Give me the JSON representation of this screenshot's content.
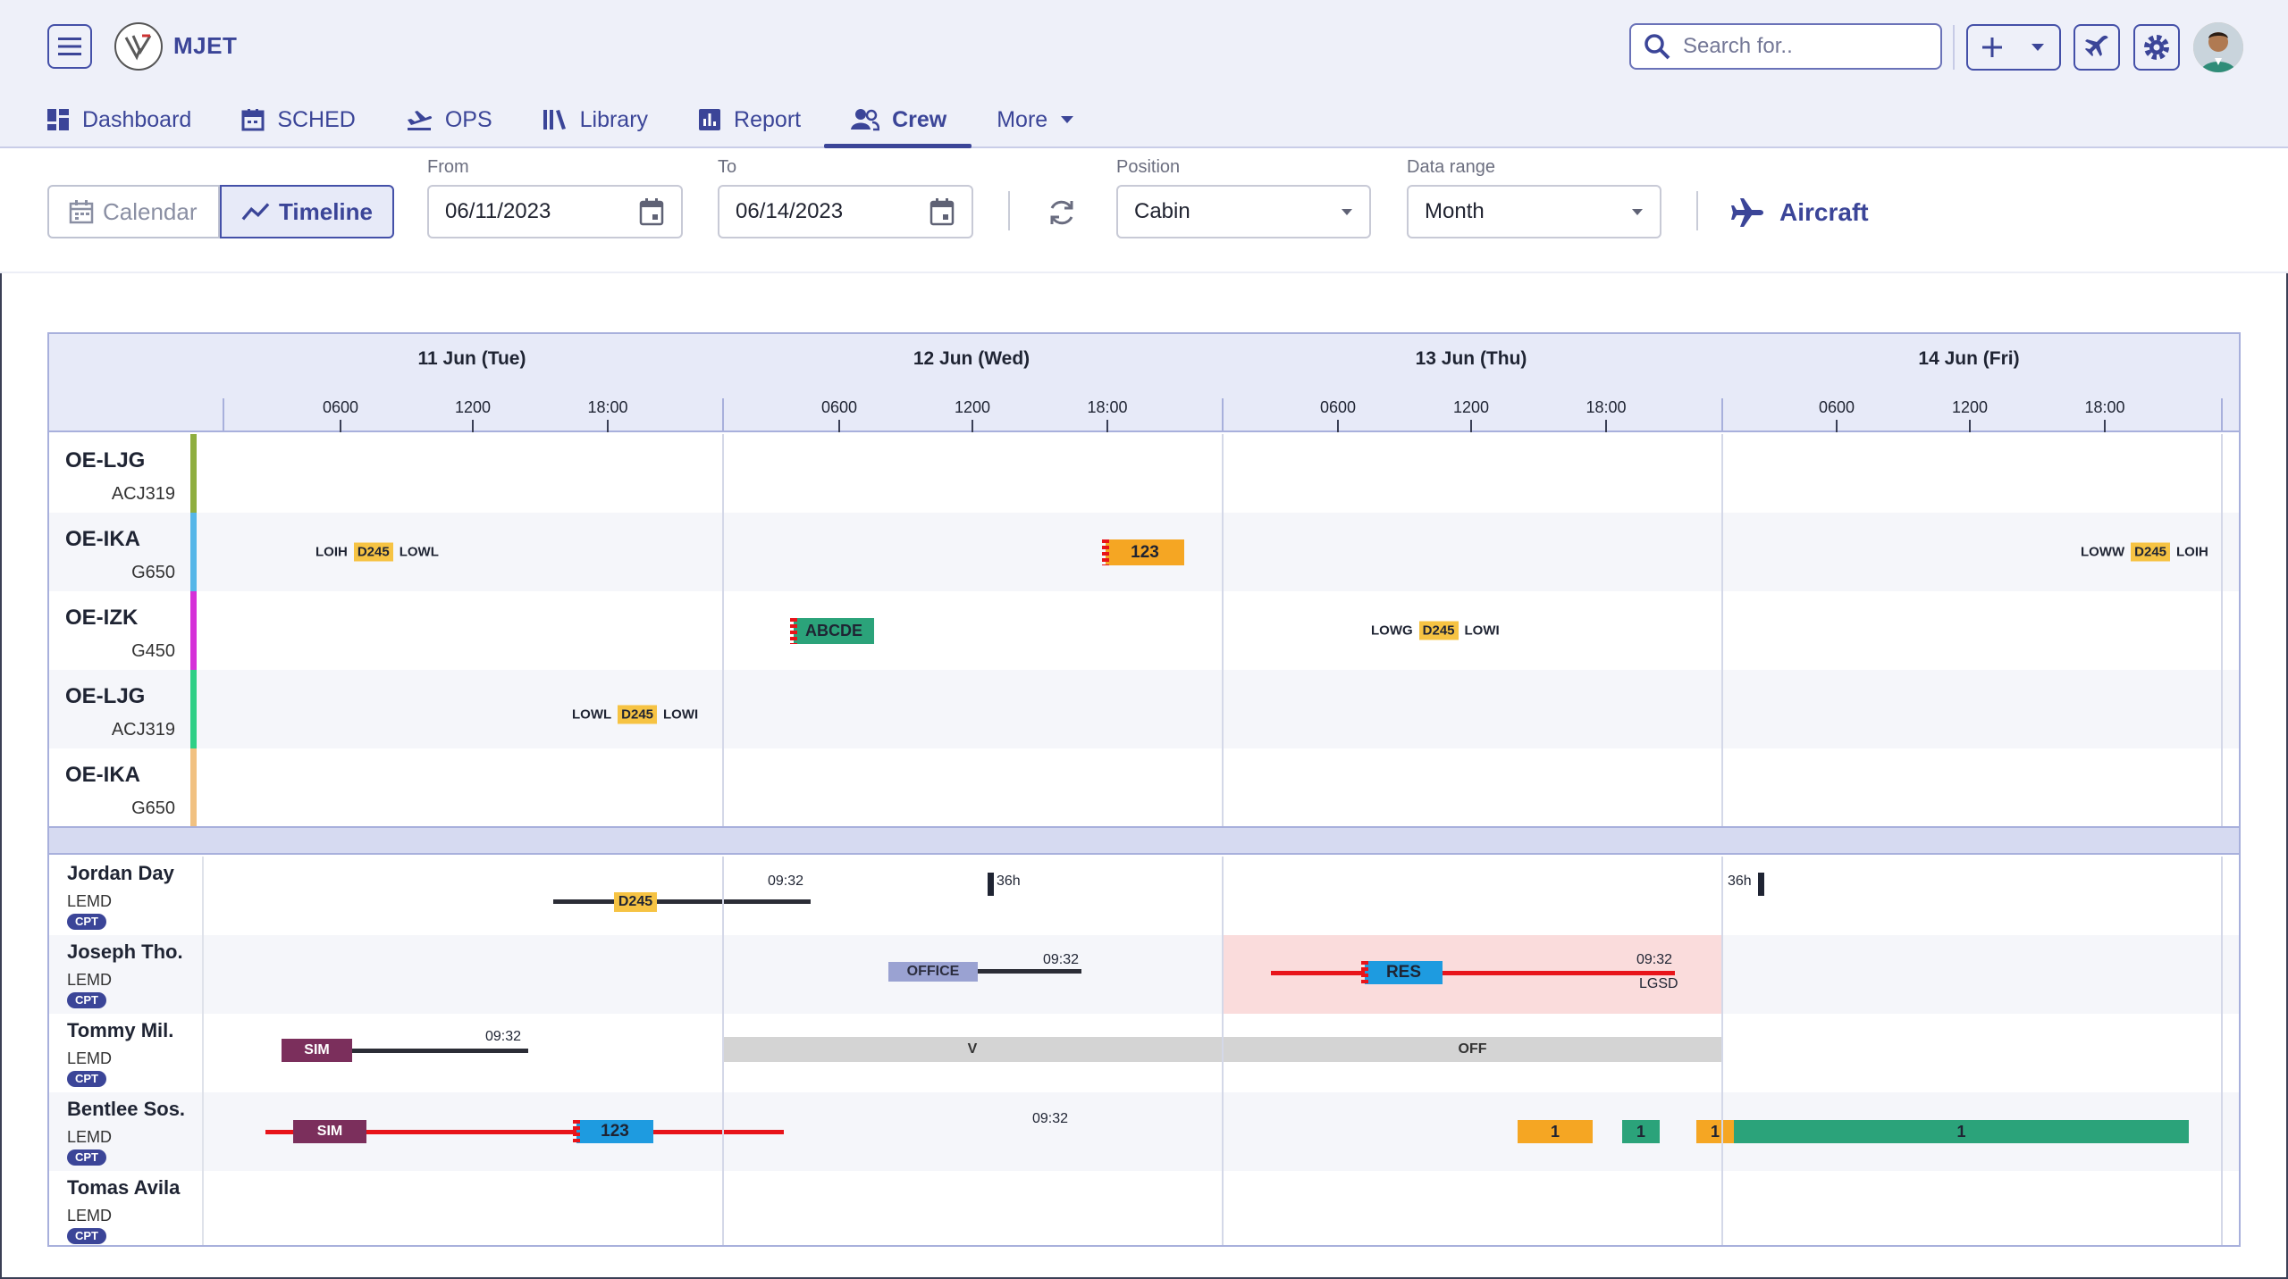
{
  "app": {
    "brand": "MJET"
  },
  "header": {
    "search_placeholder": "Search for..",
    "colors": {
      "primary": "#3b4598",
      "header_bg": "#eef0f9"
    }
  },
  "nav": {
    "tabs": [
      {
        "label": "Dashboard",
        "icon": "dashboard-icon",
        "active": false
      },
      {
        "label": "SCHED",
        "icon": "calendar-icon",
        "active": false
      },
      {
        "label": "OPS",
        "icon": "takeoff-icon",
        "active": false
      },
      {
        "label": "Library",
        "icon": "library-icon",
        "active": false
      },
      {
        "label": "Report",
        "icon": "report-icon",
        "active": false
      },
      {
        "label": "Crew",
        "icon": "crew-icon",
        "active": true
      },
      {
        "label": "More",
        "icon": "caret-down-icon",
        "active": false
      }
    ]
  },
  "toolbar": {
    "view_calendar": "Calendar",
    "view_timeline": "Timeline",
    "from_label": "From",
    "from_value": "06/11/2023",
    "to_label": "To",
    "to_value": "06/14/2023",
    "position_label": "Position",
    "position_value": "Cabin",
    "range_label": "Data range",
    "range_value": "Month",
    "aircraft_label": "Aircraft"
  },
  "timeline": {
    "days": [
      "11 Jun (Tue)",
      "12 Jun (Wed)",
      "13 Jun (Thu)",
      "14 Jun (Fri)"
    ],
    "hours": [
      "0600",
      "1200",
      "18:00"
    ],
    "aircraft": [
      {
        "reg": "OE-LJG",
        "type": "ACJ319",
        "color": "#8fae3f"
      },
      {
        "reg": "OE-IKA",
        "type": "G650",
        "color": "#55b6e8"
      },
      {
        "reg": "OE-IZK",
        "type": "G450",
        "color": "#d530d8"
      },
      {
        "reg": "OE-LJG",
        "type": "ACJ319",
        "color": "#2fcf86"
      },
      {
        "reg": "OE-IKA",
        "type": "G650",
        "color": "#f1c181"
      }
    ],
    "flights": [
      {
        "from": "LOIH",
        "code": "D245",
        "to": "LOWL"
      },
      {
        "label": "123"
      },
      {
        "from": "LOWW",
        "code": "D245",
        "to": "LOIH"
      },
      {
        "label": "ABCDE"
      },
      {
        "from": "LOWG",
        "code": "D245",
        "to": "LOWI"
      },
      {
        "from": "LOWL",
        "code": "D245",
        "to": "LOWI"
      }
    ],
    "crew": [
      {
        "name": "Jordan Day",
        "base": "LEMD",
        "rank": "CPT"
      },
      {
        "name": "Joseph Tho.",
        "base": "LEMD",
        "rank": "CPT"
      },
      {
        "name": "Tommy Mil.",
        "base": "LEMD",
        "rank": "CPT"
      },
      {
        "name": "Bentlee Sos.",
        "base": "LEMD",
        "rank": "CPT"
      },
      {
        "name": "Tomas Avila",
        "base": "LEMD",
        "rank": "CPT"
      }
    ],
    "duties": {
      "jordan_code": "D245",
      "jordan_time": "09:32",
      "jordan_rest1": "36h",
      "jordan_rest2": "36h",
      "joseph_office": "OFFICE",
      "joseph_time1": "09:32",
      "joseph_res": "RES",
      "joseph_time2": "09:32",
      "joseph_airport": "LGSD",
      "tommy_sim": "SIM",
      "tommy_time": "09:32",
      "tommy_v": "V",
      "tommy_off": "OFF",
      "bentlee_sim": "SIM",
      "bentlee_123": "123",
      "bentlee_time": "09:32",
      "bentlee_b1": "1",
      "bentlee_b2": "1",
      "bentlee_b3": "1",
      "bentlee_b4": "1"
    }
  }
}
